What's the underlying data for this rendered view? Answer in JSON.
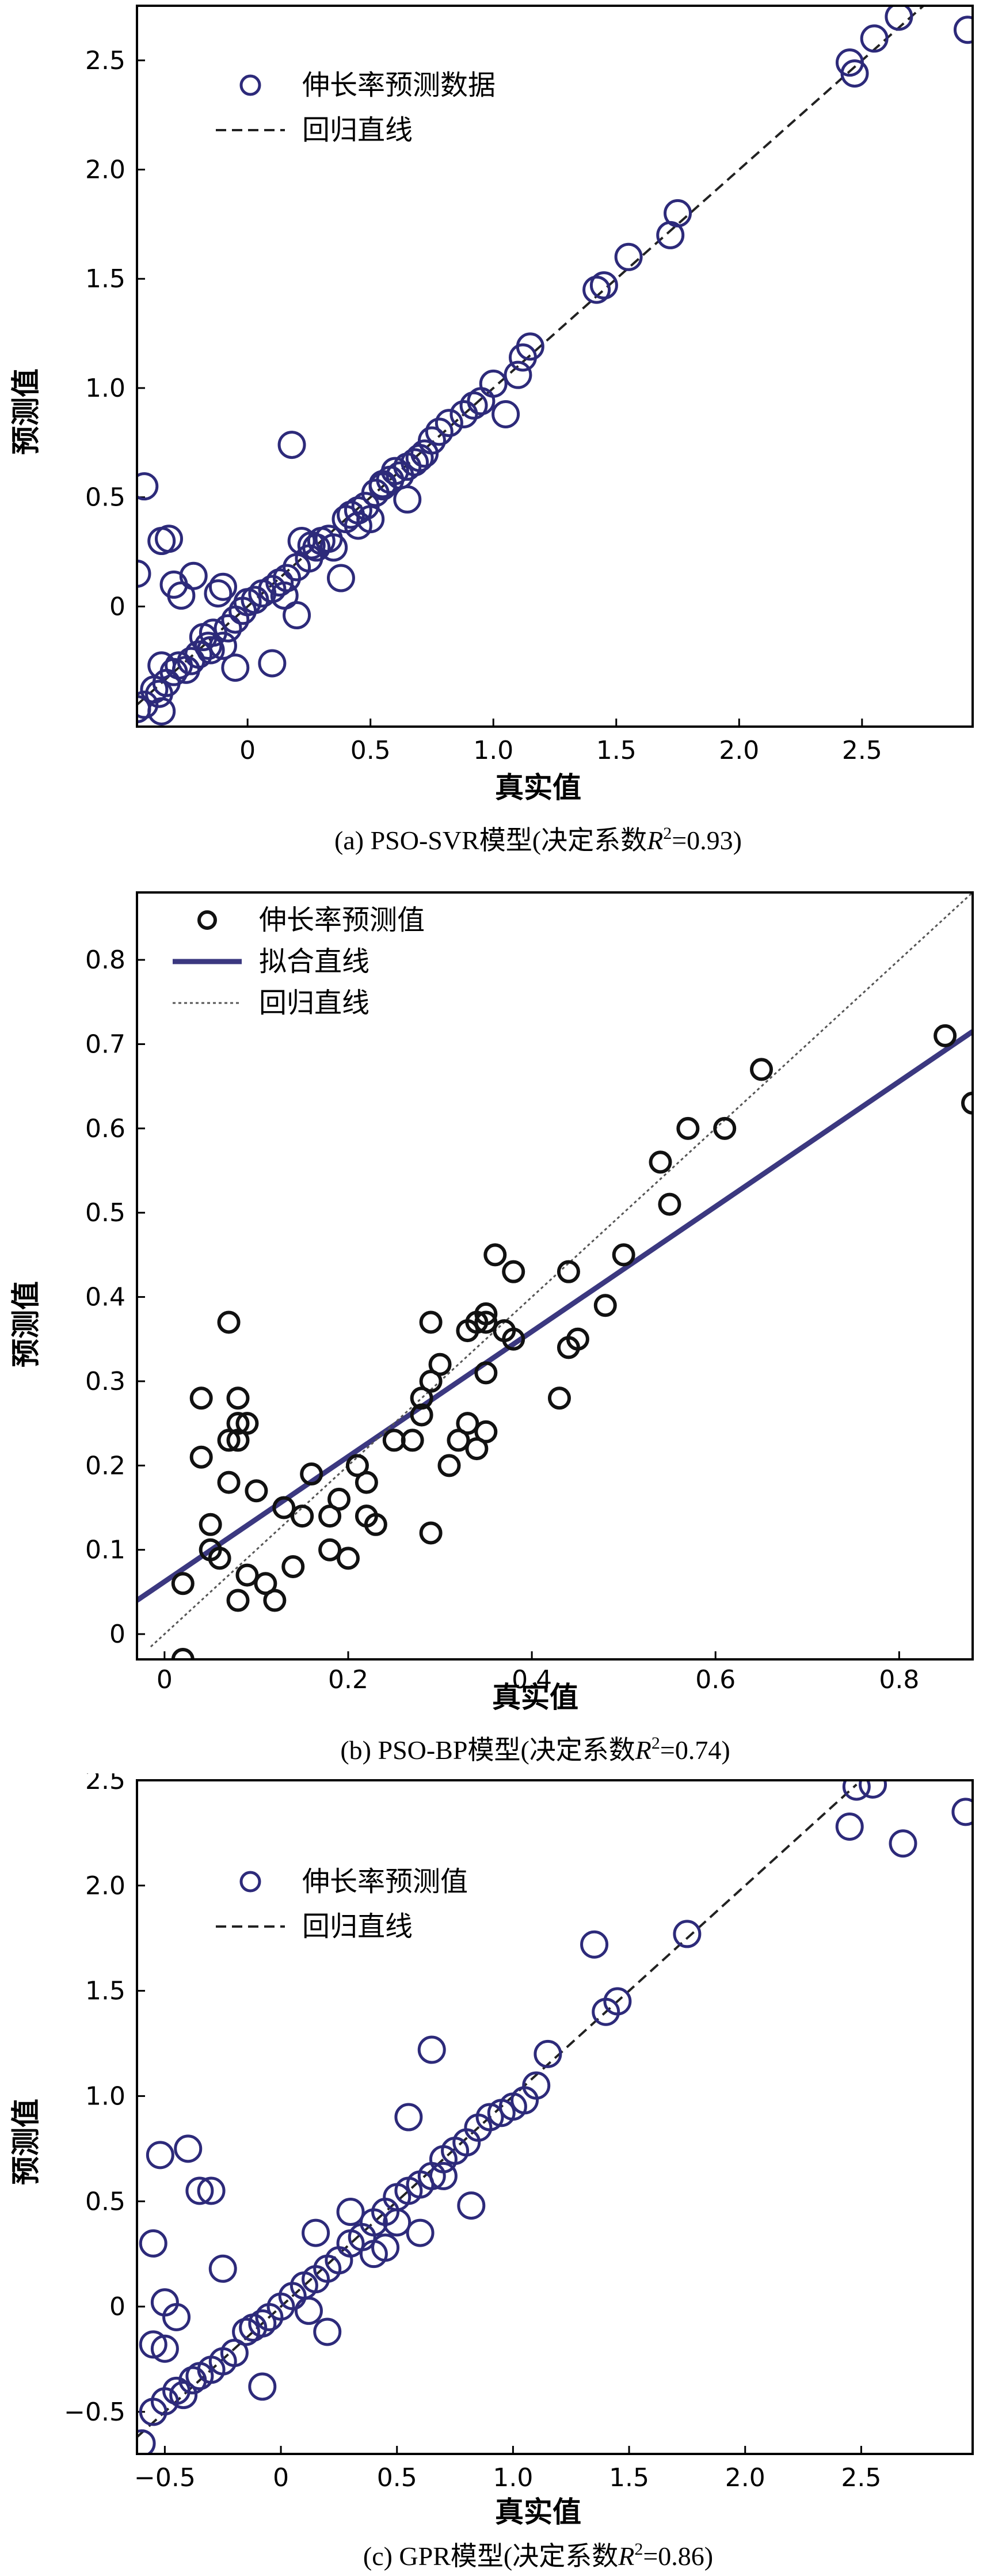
{
  "chart_data": [
    {
      "id": "a",
      "type": "scatter",
      "caption_prefix": "(a) PSO-SVR模型(决定系数",
      "caption_r": "R",
      "caption_sup": "2",
      "caption_suffix": "=0.93)",
      "xlabel": "真实值",
      "ylabel": "预测值",
      "xlim": [
        -0.45,
        2.95
      ],
      "ylim": [
        -0.55,
        2.75
      ],
      "xticks": [
        -0.5,
        0,
        0.5,
        1.0,
        1.5,
        2.0,
        2.5
      ],
      "xtick_labels": [
        "−0.5",
        "0",
        "0.5",
        "1.0",
        "1.5",
        "2.0",
        "2.5"
      ],
      "yticks": [
        0,
        0.5,
        1.0,
        1.5,
        2.0,
        2.5
      ],
      "ytick_labels": [
        "0",
        "0.5",
        "1.0",
        "1.5",
        "2.0",
        "2.5"
      ],
      "xtick_label_pos": "below",
      "marker_color": "#2d2a7a",
      "legend": {
        "placement": "top-left",
        "entries": [
          {
            "kind": "marker",
            "label": "伸长率预测数据"
          },
          {
            "kind": "dashed",
            "label": "回归直线"
          }
        ]
      },
      "series": [
        {
          "name": "伸长率预测数据",
          "points": [
            [
              -0.35,
              -0.48
            ],
            [
              -0.45,
              -0.47
            ],
            [
              -0.42,
              -0.45
            ],
            [
              -0.38,
              -0.38
            ],
            [
              -0.36,
              -0.4
            ],
            [
              -0.33,
              -0.35
            ],
            [
              -0.3,
              -0.3
            ],
            [
              -0.28,
              -0.27
            ],
            [
              -0.25,
              -0.29
            ],
            [
              -0.23,
              -0.25
            ],
            [
              -0.2,
              -0.22
            ],
            [
              -0.18,
              -0.14
            ],
            [
              -0.16,
              -0.18
            ],
            [
              -0.14,
              -0.12
            ],
            [
              -0.1,
              -0.18
            ],
            [
              -0.08,
              -0.1
            ],
            [
              -0.05,
              -0.06
            ],
            [
              -0.02,
              -0.02
            ],
            [
              0.0,
              0.02
            ],
            [
              0.03,
              0.03
            ],
            [
              0.06,
              0.06
            ],
            [
              0.1,
              0.08
            ],
            [
              0.13,
              0.11
            ],
            [
              0.16,
              0.13
            ],
            [
              0.2,
              0.18
            ],
            [
              0.25,
              0.22
            ],
            [
              0.28,
              0.27
            ],
            [
              0.3,
              0.3
            ],
            [
              0.33,
              0.31
            ],
            [
              0.4,
              0.4
            ],
            [
              0.42,
              0.42
            ],
            [
              0.45,
              0.44
            ],
            [
              0.48,
              0.46
            ],
            [
              0.52,
              0.52
            ],
            [
              0.55,
              0.55
            ],
            [
              0.58,
              0.58
            ],
            [
              0.6,
              0.62
            ],
            [
              0.62,
              0.6
            ],
            [
              0.65,
              0.64
            ],
            [
              0.68,
              0.66
            ],
            [
              0.72,
              0.7
            ],
            [
              0.75,
              0.76
            ],
            [
              0.78,
              0.8
            ],
            [
              0.82,
              0.84
            ],
            [
              0.88,
              0.88
            ],
            [
              0.92,
              0.92
            ],
            [
              0.95,
              0.94
            ],
            [
              1.0,
              1.02
            ],
            [
              1.05,
              0.88
            ],
            [
              1.1,
              1.06
            ],
            [
              1.12,
              1.14
            ],
            [
              1.15,
              1.19
            ],
            [
              1.42,
              1.45
            ],
            [
              1.45,
              1.47
            ],
            [
              1.55,
              1.6
            ],
            [
              1.72,
              1.7
            ],
            [
              1.75,
              1.8
            ],
            [
              2.45,
              2.49
            ],
            [
              2.47,
              2.44
            ],
            [
              2.55,
              2.6
            ],
            [
              2.65,
              2.7
            ],
            [
              2.93,
              2.64
            ],
            [
              -0.42,
              0.55
            ],
            [
              -0.45,
              0.15
            ],
            [
              -0.35,
              0.3
            ],
            [
              -0.32,
              0.31
            ],
            [
              -0.3,
              0.1
            ],
            [
              -0.27,
              0.05
            ],
            [
              -0.22,
              0.14
            ],
            [
              -0.12,
              0.06
            ],
            [
              -0.1,
              0.09
            ],
            [
              0.18,
              0.74
            ],
            [
              0.22,
              0.3
            ],
            [
              0.26,
              0.28
            ],
            [
              0.38,
              0.13
            ],
            [
              0.45,
              0.37
            ],
            [
              0.5,
              0.4
            ],
            [
              0.65,
              0.49
            ],
            [
              0.2,
              -0.04
            ],
            [
              0.1,
              -0.26
            ],
            [
              -0.05,
              -0.28
            ],
            [
              -0.35,
              -0.27
            ],
            [
              0.15,
              0.05
            ],
            [
              -0.15,
              -0.2
            ],
            [
              0.35,
              0.27
            ],
            [
              0.55,
              0.56
            ],
            [
              0.7,
              0.68
            ]
          ]
        }
      ],
      "lines": [
        {
          "name": "回归直线",
          "style": "dashed",
          "x": [
            -0.45,
            2.75
          ],
          "y": [
            -0.45,
            2.75
          ]
        }
      ]
    },
    {
      "id": "b",
      "type": "scatter",
      "caption_prefix": "(b) PSO-BP模型(决定系数",
      "caption_r": "R",
      "caption_sup": "2",
      "caption_suffix": "=0.74)",
      "xlabel": "真实值",
      "ylabel": "预测值",
      "xlim": [
        -0.03,
        0.88
      ],
      "ylim": [
        -0.03,
        0.88
      ],
      "xticks": [
        0,
        0.2,
        0.4,
        0.6,
        0.8
      ],
      "xtick_labels": [
        "0",
        "0.2",
        "0.4",
        "0.6",
        "0.8"
      ],
      "yticks": [
        0,
        0.1,
        0.2,
        0.3,
        0.4,
        0.5,
        0.6,
        0.7,
        0.8
      ],
      "ytick_labels": [
        "0",
        "0.1",
        "0.2",
        "0.3",
        "0.4",
        "0.5",
        "0.6",
        "0.7",
        "0.8"
      ],
      "marker_color": "#111111",
      "legend": {
        "placement": "top-left",
        "entries": [
          {
            "kind": "marker",
            "label": "伸长率预测值"
          },
          {
            "kind": "solid",
            "label": "拟合直线"
          },
          {
            "kind": "dotted",
            "label": "回归直线"
          }
        ]
      },
      "series": [
        {
          "name": "伸长率预测值",
          "points": [
            [
              0.02,
              -0.03
            ],
            [
              0.02,
              0.06
            ],
            [
              0.04,
              0.21
            ],
            [
              0.04,
              0.28
            ],
            [
              0.05,
              0.1
            ],
            [
              0.05,
              0.13
            ],
            [
              0.06,
              0.09
            ],
            [
              0.07,
              0.23
            ],
            [
              0.07,
              0.37
            ],
            [
              0.07,
              0.18
            ],
            [
              0.08,
              0.23
            ],
            [
              0.08,
              0.28
            ],
            [
              0.08,
              0.25
            ],
            [
              0.08,
              0.04
            ],
            [
              0.09,
              0.25
            ],
            [
              0.09,
              0.07
            ],
            [
              0.1,
              0.17
            ],
            [
              0.11,
              0.06
            ],
            [
              0.12,
              0.04
            ],
            [
              0.13,
              0.15
            ],
            [
              0.14,
              0.08
            ],
            [
              0.15,
              0.14
            ],
            [
              0.16,
              0.19
            ],
            [
              0.18,
              0.14
            ],
            [
              0.18,
              0.1
            ],
            [
              0.19,
              0.16
            ],
            [
              0.2,
              0.09
            ],
            [
              0.21,
              0.2
            ],
            [
              0.22,
              0.18
            ],
            [
              0.22,
              0.14
            ],
            [
              0.23,
              0.13
            ],
            [
              0.25,
              0.23
            ],
            [
              0.27,
              0.23
            ],
            [
              0.28,
              0.28
            ],
            [
              0.28,
              0.26
            ],
            [
              0.29,
              0.37
            ],
            [
              0.29,
              0.12
            ],
            [
              0.29,
              0.3
            ],
            [
              0.3,
              0.32
            ],
            [
              0.31,
              0.2
            ],
            [
              0.32,
              0.23
            ],
            [
              0.33,
              0.25
            ],
            [
              0.33,
              0.36
            ],
            [
              0.34,
              0.37
            ],
            [
              0.34,
              0.22
            ],
            [
              0.35,
              0.37
            ],
            [
              0.35,
              0.31
            ],
            [
              0.35,
              0.38
            ],
            [
              0.35,
              0.24
            ],
            [
              0.36,
              0.45
            ],
            [
              0.37,
              0.36
            ],
            [
              0.38,
              0.43
            ],
            [
              0.38,
              0.35
            ],
            [
              0.43,
              0.28
            ],
            [
              0.44,
              0.43
            ],
            [
              0.44,
              0.34
            ],
            [
              0.45,
              0.35
            ],
            [
              0.48,
              0.39
            ],
            [
              0.5,
              0.45
            ],
            [
              0.54,
              0.56
            ],
            [
              0.55,
              0.51
            ],
            [
              0.57,
              0.6
            ],
            [
              0.61,
              0.6
            ],
            [
              0.65,
              0.67
            ],
            [
              0.85,
              0.71
            ],
            [
              0.88,
              0.63
            ]
          ]
        }
      ],
      "lines": [
        {
          "name": "拟合直线",
          "style": "solid",
          "x": [
            -0.03,
            0.88
          ],
          "y": [
            0.04,
            0.715
          ]
        },
        {
          "name": "回归直线",
          "style": "dotted",
          "x": [
            -0.015,
            0.88
          ],
          "y": [
            -0.015,
            0.88
          ]
        }
      ]
    },
    {
      "id": "c",
      "type": "scatter",
      "caption_prefix": "(c) GPR模型(决定系数",
      "caption_r": "R",
      "caption_sup": "2",
      "caption_suffix": "=0.86)",
      "xlabel": "真实值",
      "ylabel": "预测值",
      "xlim": [
        -0.62,
        2.98
      ],
      "ylim": [
        -0.7,
        2.5
      ],
      "xticks": [
        -0.5,
        0,
        0.5,
        1.0,
        1.5,
        2.0,
        2.5
      ],
      "xtick_labels": [
        "−0.5",
        "0",
        "0.5",
        "1.0",
        "1.5",
        "2.0",
        "2.5"
      ],
      "yticks": [
        -0.5,
        0,
        0.5,
        1.0,
        1.5,
        2.0,
        2.5
      ],
      "ytick_labels": [
        "−0.5",
        "0",
        "0.5",
        "1.0",
        "1.5",
        "2.0",
        "2.5"
      ],
      "marker_color": "#2d2a7a",
      "legend": {
        "placement": "top-left",
        "entries": [
          {
            "kind": "marker",
            "label": "伸长率预测值"
          },
          {
            "kind": "dashed",
            "label": "回归直线"
          }
        ]
      },
      "series": [
        {
          "name": "伸长率预测值",
          "points": [
            [
              -0.6,
              -0.65
            ],
            [
              -0.55,
              -0.5
            ],
            [
              -0.5,
              -0.45
            ],
            [
              -0.45,
              -0.4
            ],
            [
              -0.42,
              -0.42
            ],
            [
              -0.38,
              -0.35
            ],
            [
              -0.35,
              -0.33
            ],
            [
              -0.3,
              -0.3
            ],
            [
              -0.25,
              -0.26
            ],
            [
              -0.2,
              -0.22
            ],
            [
              -0.15,
              -0.12
            ],
            [
              -0.12,
              -0.1
            ],
            [
              -0.08,
              -0.08
            ],
            [
              -0.05,
              -0.05
            ],
            [
              0.0,
              0.0
            ],
            [
              0.05,
              0.05
            ],
            [
              0.1,
              0.1
            ],
            [
              0.15,
              0.13
            ],
            [
              0.2,
              0.18
            ],
            [
              0.25,
              0.22
            ],
            [
              0.3,
              0.3
            ],
            [
              0.35,
              0.33
            ],
            [
              0.4,
              0.4
            ],
            [
              0.45,
              0.45
            ],
            [
              0.5,
              0.52
            ],
            [
              0.55,
              0.55
            ],
            [
              0.6,
              0.58
            ],
            [
              0.65,
              0.62
            ],
            [
              0.7,
              0.7
            ],
            [
              0.75,
              0.74
            ],
            [
              0.8,
              0.78
            ],
            [
              0.85,
              0.85
            ],
            [
              0.9,
              0.9
            ],
            [
              0.95,
              0.92
            ],
            [
              1.0,
              0.95
            ],
            [
              1.05,
              0.98
            ],
            [
              1.1,
              1.05
            ],
            [
              1.15,
              1.2
            ],
            [
              1.35,
              1.72
            ],
            [
              1.4,
              1.4
            ],
            [
              1.45,
              1.45
            ],
            [
              1.75,
              1.77
            ],
            [
              2.45,
              2.28
            ],
            [
              2.48,
              2.47
            ],
            [
              2.55,
              2.48
            ],
            [
              2.68,
              2.2
            ],
            [
              2.95,
              2.35
            ],
            [
              -0.52,
              0.72
            ],
            [
              -0.4,
              0.75
            ],
            [
              -0.35,
              0.55
            ],
            [
              -0.3,
              0.55
            ],
            [
              -0.55,
              0.3
            ],
            [
              -0.5,
              0.02
            ],
            [
              -0.45,
              -0.05
            ],
            [
              -0.55,
              -0.18
            ],
            [
              -0.5,
              -0.2
            ],
            [
              -0.25,
              0.18
            ],
            [
              -0.08,
              -0.38
            ],
            [
              0.15,
              0.35
            ],
            [
              0.2,
              -0.12
            ],
            [
              0.3,
              0.45
            ],
            [
              0.45,
              0.28
            ],
            [
              0.55,
              0.9
            ],
            [
              0.65,
              1.22
            ],
            [
              0.6,
              0.35
            ],
            [
              0.82,
              0.48
            ],
            [
              0.12,
              -0.02
            ],
            [
              0.4,
              0.25
            ],
            [
              0.7,
              0.62
            ],
            [
              0.5,
              0.4
            ]
          ]
        }
      ],
      "lines": [
        {
          "name": "回归直线",
          "style": "dashed",
          "x": [
            -0.62,
            2.48
          ],
          "y": [
            -0.62,
            2.48
          ]
        }
      ]
    }
  ]
}
